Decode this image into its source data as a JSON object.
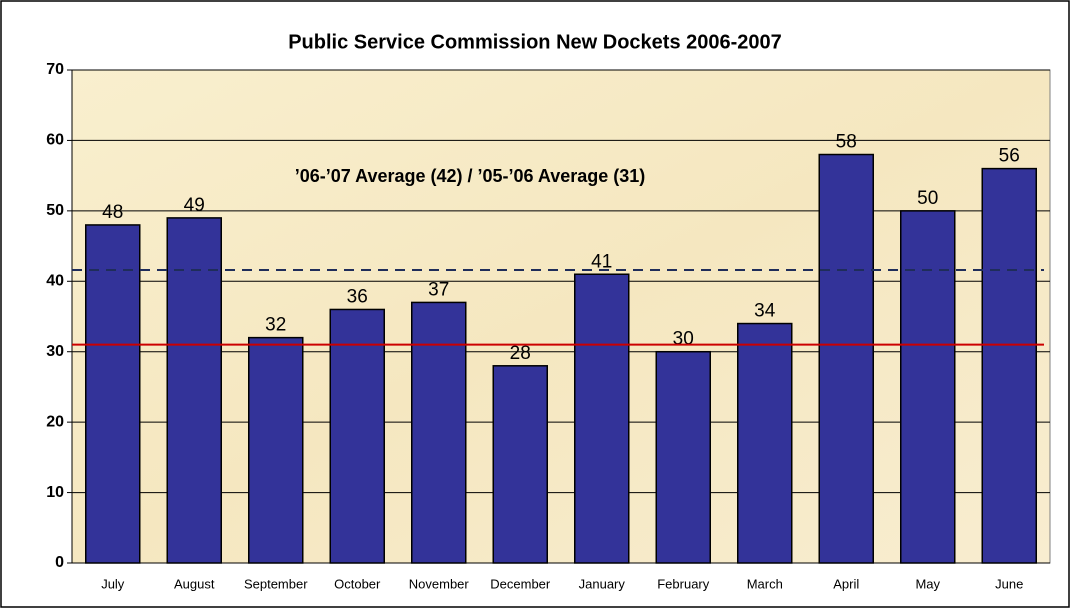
{
  "chart_data": {
    "type": "bar",
    "title": "Public Service Commission New Dockets 2006-2007",
    "annotation": "’06-’07 Average (42) / ’05-’06 Average (31)",
    "categories": [
      "July",
      "August",
      "September",
      "October",
      "November",
      "December",
      "January",
      "February",
      "March",
      "April",
      "May",
      "June"
    ],
    "values": [
      48,
      49,
      32,
      36,
      37,
      28,
      41,
      30,
      34,
      58,
      50,
      56
    ],
    "color": "#333399",
    "ylim": [
      0,
      70
    ],
    "yticks": [
      0,
      10,
      20,
      30,
      40,
      50,
      60,
      70
    ],
    "grid": true,
    "reference_lines": [
      {
        "value": 41.6,
        "color": "#1f2d5a",
        "style": "dashed"
      },
      {
        "value": 31,
        "color": "#cc0000",
        "style": "solid"
      }
    ]
  }
}
